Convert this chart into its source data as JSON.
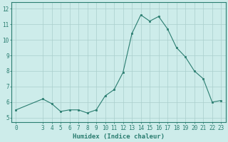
{
  "x": [
    0,
    3,
    4,
    5,
    6,
    7,
    8,
    9,
    10,
    11,
    12,
    13,
    14,
    15,
    16,
    17,
    18,
    19,
    20,
    21,
    22,
    23
  ],
  "y": [
    5.5,
    6.2,
    5.9,
    5.4,
    5.5,
    5.5,
    5.3,
    5.5,
    6.4,
    6.8,
    7.9,
    10.4,
    11.6,
    11.2,
    11.5,
    10.7,
    9.5,
    8.9,
    8.0,
    7.5,
    6.0,
    6.1
  ],
  "line_color": "#2a7d70",
  "marker_color": "#2a7d70",
  "bg_color": "#cdecea",
  "grid_color": "#aacfcc",
  "xlabel": "Humidex (Indice chaleur)",
  "xlabel_fontsize": 6.5,
  "ylabel_ticks": [
    5,
    6,
    7,
    8,
    9,
    10,
    11,
    12
  ],
  "xlim": [
    -0.5,
    23.5
  ],
  "ylim": [
    4.7,
    12.4
  ],
  "xticks": [
    0,
    3,
    4,
    5,
    6,
    7,
    8,
    9,
    10,
    11,
    12,
    13,
    14,
    15,
    16,
    17,
    18,
    19,
    20,
    21,
    22,
    23
  ],
  "tick_fontsize": 5.5,
  "spine_color": "#2a7d70",
  "axis_color": "#2a7d70"
}
